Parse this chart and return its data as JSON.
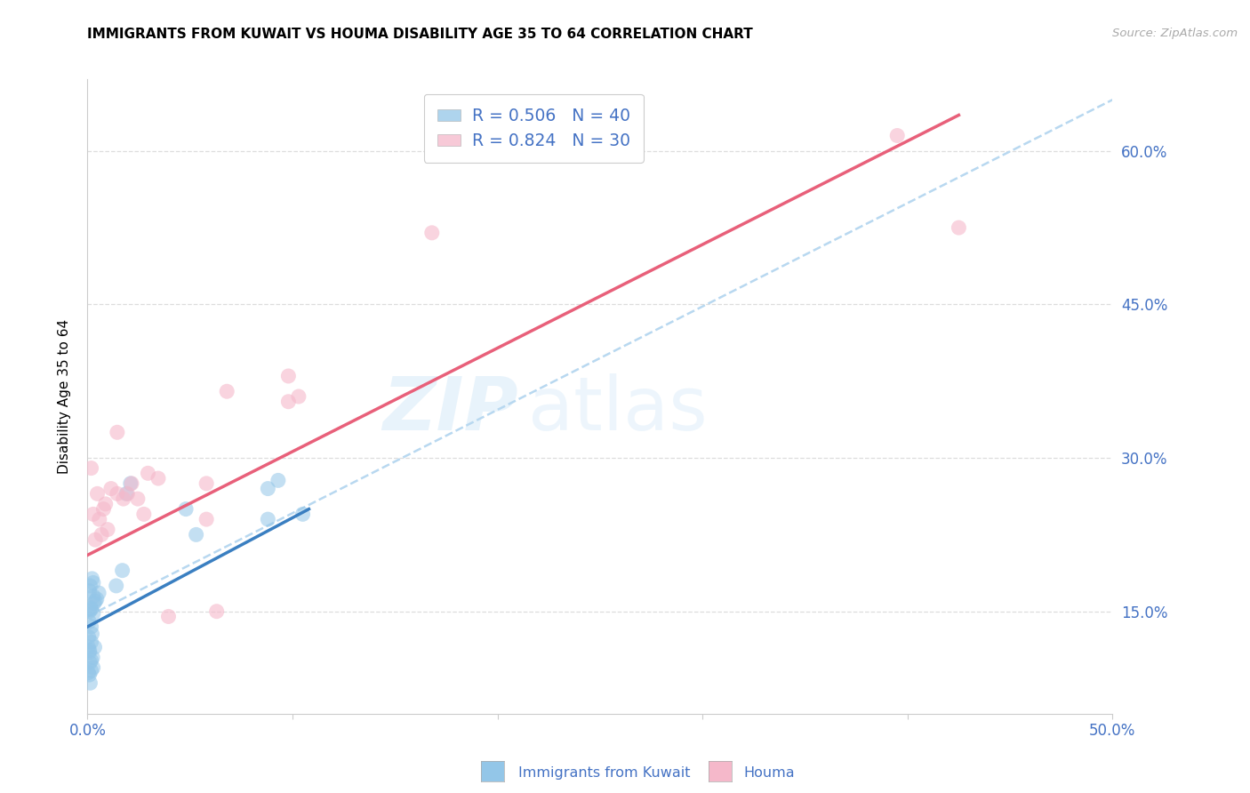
{
  "title": "IMMIGRANTS FROM KUWAIT VS HOUMA DISABILITY AGE 35 TO 64 CORRELATION CHART",
  "source": "Source: ZipAtlas.com",
  "ylabel": "Disability Age 35 to 64",
  "x_tick_labels": [
    "0.0%",
    "",
    "",
    "",
    "",
    "50.0%"
  ],
  "x_tick_vals": [
    0,
    10,
    20,
    30,
    40,
    50
  ],
  "y_tick_labels_right": [
    "15.0%",
    "30.0%",
    "45.0%",
    "60.0%"
  ],
  "y_tick_vals": [
    15,
    30,
    45,
    60
  ],
  "xlim": [
    0,
    50
  ],
  "ylim": [
    5,
    67
  ],
  "blue_color": "#93c6e8",
  "pink_color": "#f5b8ca",
  "blue_line_color": "#3a7fc1",
  "pink_line_color": "#e8607a",
  "dashed_line_color": "#b8d8f0",
  "tick_color": "#4472c4",
  "watermark_text": "ZIP",
  "watermark_text2": "atlas",
  "legend_label1": "Immigrants from Kuwait",
  "legend_label2": "Houma",
  "legend_r1": "R = 0.506   N = 40",
  "legend_r2": "R = 0.824   N = 30",
  "blue_dots_x": [
    0.18,
    0.25,
    0.1,
    0.35,
    0.12,
    0.22,
    0.08,
    0.28,
    0.18,
    0.32,
    0.45,
    0.38,
    0.55,
    0.28,
    0.18,
    0.09,
    0.13,
    0.22,
    0.28,
    0.18,
    0.09,
    0.05,
    0.04,
    0.09,
    0.18,
    0.04,
    0.09,
    0.13,
    0.18,
    0.27,
    1.4,
    1.7,
    1.9,
    2.1,
    4.8,
    5.3,
    8.8,
    9.3,
    8.8,
    10.5
  ],
  "blue_dots_y": [
    12.0,
    10.5,
    11.2,
    11.5,
    10.0,
    12.8,
    14.0,
    14.8,
    15.2,
    15.8,
    16.2,
    16.0,
    16.8,
    16.5,
    15.3,
    17.0,
    17.5,
    18.2,
    17.8,
    13.5,
    15.0,
    12.5,
    11.5,
    11.0,
    10.2,
    9.0,
    8.8,
    8.0,
    9.2,
    9.5,
    17.5,
    19.0,
    26.5,
    27.5,
    25.0,
    22.5,
    27.0,
    27.8,
    24.0,
    24.5
  ],
  "pink_dots_x": [
    0.18,
    0.28,
    0.38,
    0.48,
    0.58,
    0.68,
    0.78,
    0.88,
    0.98,
    1.15,
    1.45,
    1.75,
    1.95,
    2.15,
    2.45,
    2.75,
    2.95,
    3.45,
    3.95,
    6.3,
    5.8,
    5.8,
    6.8,
    1.45,
    9.8,
    10.3,
    9.8,
    16.8,
    39.5,
    42.5
  ],
  "pink_dots_y": [
    29.0,
    24.5,
    22.0,
    26.5,
    24.0,
    22.5,
    25.0,
    25.5,
    23.0,
    27.0,
    26.5,
    26.0,
    26.5,
    27.5,
    26.0,
    24.5,
    28.5,
    28.0,
    14.5,
    15.0,
    27.5,
    24.0,
    36.5,
    32.5,
    35.5,
    36.0,
    38.0,
    52.0,
    61.5,
    52.5
  ],
  "blue_line_x": [
    0.0,
    10.8
  ],
  "blue_line_y": [
    13.5,
    25.0
  ],
  "pink_line_x": [
    0.0,
    42.5
  ],
  "pink_line_y": [
    20.5,
    63.5
  ],
  "dashed_line_x": [
    0.0,
    50.0
  ],
  "dashed_line_y": [
    14.5,
    65.0
  ]
}
